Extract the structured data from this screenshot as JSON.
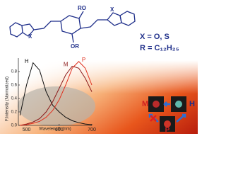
{
  "structure": {
    "substituents": [
      "X",
      "RO",
      "OR",
      "X"
    ]
  },
  "definitions": [
    "X = O, S",
    "R = C₁₂H₂₅"
  ],
  "chart_data": {
    "type": "line",
    "y_label": "F.Intensity (Normalized)",
    "x_label": "Wavelength (nm)",
    "x": [
      480,
      500,
      520,
      540,
      560,
      580,
      600,
      620,
      640,
      660,
      680,
      700
    ],
    "series": [
      {
        "name": "H",
        "color": "#111111",
        "values": [
          0.15,
          0.6,
          0.93,
          0.82,
          0.5,
          0.3,
          0.2,
          0.12,
          0.07,
          0.04,
          0.02,
          0.01
        ]
      },
      {
        "name": "M",
        "color": "#8b1a1a",
        "values": [
          0,
          0.02,
          0.05,
          0.1,
          0.2,
          0.35,
          0.55,
          0.75,
          0.88,
          0.85,
          0.7,
          0.5
        ]
      },
      {
        "name": "P",
        "color": "#e0301e",
        "values": [
          0,
          0.01,
          0.03,
          0.06,
          0.12,
          0.22,
          0.38,
          0.6,
          0.85,
          0.95,
          0.85,
          0.6
        ]
      }
    ],
    "xlim": [
      475,
      700
    ],
    "xticks": [
      500,
      600,
      700
    ],
    "ylim": [
      0,
      1
    ],
    "yticks": [
      {
        "value": 0,
        "label": "0.0"
      },
      {
        "value": 0.2,
        "label": "0.2"
      },
      {
        "value": 0.4,
        "label": "0.4"
      },
      {
        "value": 0.6,
        "label": "0.6"
      },
      {
        "value": 0.8,
        "label": "0.8"
      }
    ]
  },
  "diagram": {
    "nodes": [
      "M",
      "H",
      "P"
    ]
  }
}
